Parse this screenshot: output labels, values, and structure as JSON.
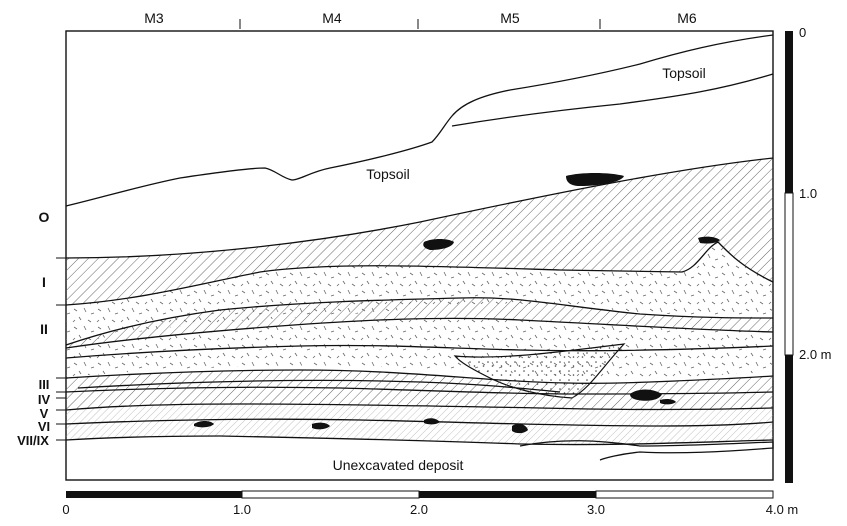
{
  "grid_labels": [
    "M3",
    "M4",
    "M5",
    "M6"
  ],
  "layer_labels": [
    "O",
    "I",
    "II",
    "III",
    "IV",
    "V",
    "VI",
    "VII/IX"
  ],
  "topsoil_labels": [
    "Topsoil",
    "Topsoil"
  ],
  "unexcavated_label": "Unexcavated deposit",
  "vertical_scale": {
    "labels": [
      "0",
      "1.0",
      "2.0 m"
    ]
  },
  "horizontal_scale": {
    "labels": [
      "0",
      "1.0",
      "2.0",
      "3.0",
      "4.0 m"
    ]
  },
  "colors": {
    "ink": "#111111",
    "paper": "#ffffff",
    "hatch": "#555555"
  }
}
